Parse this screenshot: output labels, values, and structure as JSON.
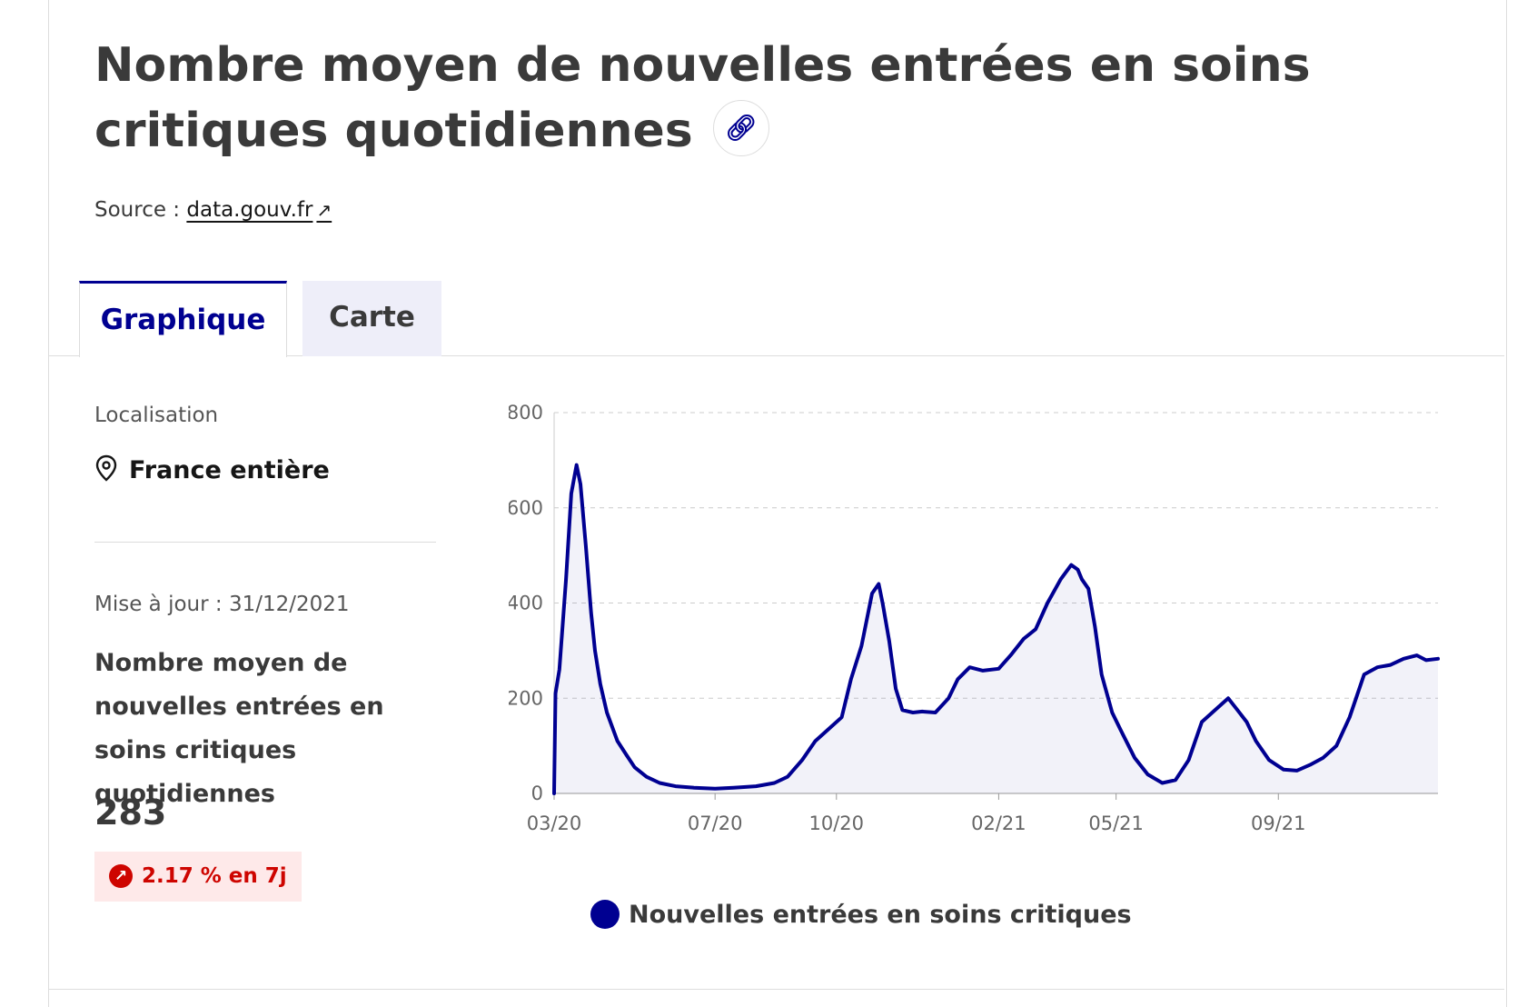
{
  "title": "Nombre moyen de nouvelles entrées en soins critiques quotidiennes",
  "source": {
    "label": "Source :",
    "link_text": "data.gouv.fr"
  },
  "tabs": [
    {
      "label": "Graphique",
      "active": true
    },
    {
      "label": "Carte",
      "active": false
    }
  ],
  "sidebar": {
    "location_label": "Localisation",
    "location": "France entière",
    "updated": "Mise à jour : 31/12/2021",
    "kpi_title": "Nombre moyen de nouvelles entrées en soins critiques quotidiennes",
    "kpi_value": "283",
    "kpi_change": "2.17 % en 7j"
  },
  "colors": {
    "accent": "#000091",
    "negative": "#ce0500",
    "negative_bg": "#fee9e9"
  },
  "chart_data": {
    "type": "area",
    "title": "",
    "xlabel": "",
    "ylabel": "",
    "ylim": [
      0,
      800
    ],
    "yticks": [
      0,
      200,
      400,
      600,
      800
    ],
    "xticks": [
      "03/20",
      "07/20",
      "10/20",
      "02/21",
      "05/21",
      "09/21"
    ],
    "grid": true,
    "legend_position": "bottom",
    "series": [
      {
        "name": "Nouvelles entrées en soins critiques",
        "x": [
          "2020-03-01",
          "2020-03-02",
          "2020-03-05",
          "2020-03-10",
          "2020-03-14",
          "2020-03-18",
          "2020-03-21",
          "2020-03-25",
          "2020-03-29",
          "2020-04-01",
          "2020-04-05",
          "2020-04-10",
          "2020-04-18",
          "2020-04-25",
          "2020-05-01",
          "2020-05-10",
          "2020-05-20",
          "2020-06-01",
          "2020-06-15",
          "2020-07-01",
          "2020-07-15",
          "2020-08-01",
          "2020-08-15",
          "2020-08-25",
          "2020-09-05",
          "2020-09-15",
          "2020-09-25",
          "2020-10-05",
          "2020-10-12",
          "2020-10-20",
          "2020-10-28",
          "2020-11-02",
          "2020-11-05",
          "2020-11-10",
          "2020-11-15",
          "2020-11-20",
          "2020-11-28",
          "2020-12-05",
          "2020-12-15",
          "2020-12-25",
          "2021-01-01",
          "2021-01-10",
          "2021-01-20",
          "2021-02-01",
          "2021-02-10",
          "2021-02-20",
          "2021-03-01",
          "2021-03-10",
          "2021-03-20",
          "2021-03-28",
          "2021-04-02",
          "2021-04-05",
          "2021-04-10",
          "2021-04-15",
          "2021-04-20",
          "2021-04-28",
          "2021-05-05",
          "2021-05-15",
          "2021-05-25",
          "2021-06-05",
          "2021-06-15",
          "2021-06-25",
          "2021-07-05",
          "2021-07-15",
          "2021-07-25",
          "2021-08-01",
          "2021-08-08",
          "2021-08-15",
          "2021-08-25",
          "2021-09-05",
          "2021-09-15",
          "2021-09-25",
          "2021-10-05",
          "2021-10-15",
          "2021-10-25",
          "2021-11-05",
          "2021-11-15",
          "2021-11-25",
          "2021-12-05",
          "2021-12-15",
          "2021-12-22",
          "2021-12-31"
        ],
        "values": [
          0,
          210,
          260,
          450,
          630,
          690,
          650,
          520,
          380,
          300,
          230,
          170,
          110,
          80,
          55,
          35,
          22,
          15,
          12,
          10,
          12,
          15,
          22,
          35,
          70,
          110,
          135,
          160,
          240,
          310,
          420,
          440,
          400,
          320,
          220,
          175,
          170,
          172,
          170,
          200,
          240,
          265,
          258,
          262,
          290,
          325,
          345,
          400,
          450,
          480,
          470,
          450,
          430,
          350,
          250,
          170,
          130,
          75,
          40,
          22,
          28,
          70,
          150,
          175,
          200,
          175,
          150,
          110,
          70,
          50,
          48,
          60,
          75,
          100,
          160,
          250,
          265,
          270,
          283,
          290,
          280,
          283
        ]
      }
    ]
  }
}
